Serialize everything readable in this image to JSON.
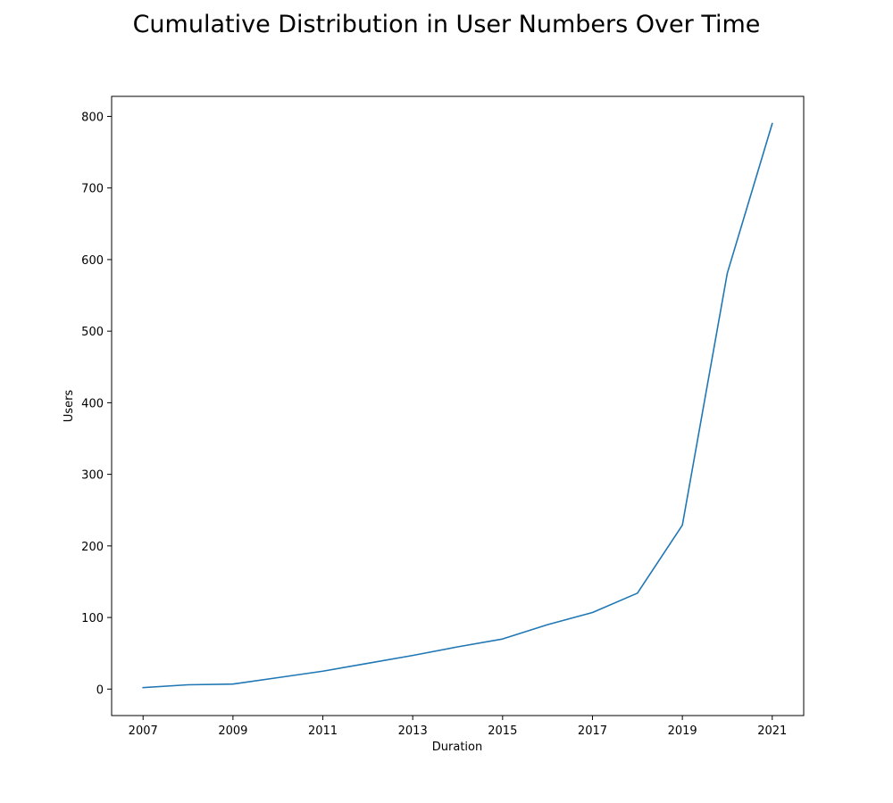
{
  "chart_data": {
    "type": "line",
    "title": "Cumulative Distribution in User Numbers Over Time",
    "xlabel": "Duration",
    "ylabel": "Users",
    "xlim": [
      2006.3,
      2021.7
    ],
    "ylim": [
      -37,
      828
    ],
    "x_ticks": [
      2007,
      2009,
      2011,
      2013,
      2015,
      2017,
      2019,
      2021
    ],
    "y_ticks": [
      0,
      100,
      200,
      300,
      400,
      500,
      600,
      700,
      800
    ],
    "grid": false,
    "colors": {
      "series": "#1f77b4"
    },
    "series": [
      {
        "x": [
          2007,
          2008,
          2009,
          2010,
          2011,
          2012,
          2013,
          2014,
          2015,
          2016,
          2017,
          2018,
          2019,
          2020,
          2021
        ],
        "y": [
          2,
          6,
          7,
          16,
          25,
          36,
          47,
          59,
          70,
          90,
          107,
          134,
          229,
          581,
          790
        ]
      }
    ]
  }
}
